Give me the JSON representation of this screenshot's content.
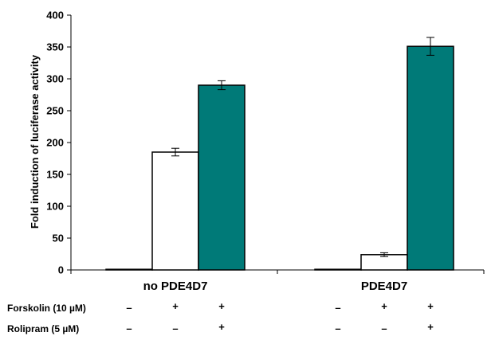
{
  "chart_data": {
    "type": "bar",
    "ylabel": "Fold induction of luciferase activity",
    "ylim": [
      0,
      400
    ],
    "yticks": [
      0,
      50,
      100,
      150,
      200,
      250,
      300,
      350,
      400
    ],
    "grid": false,
    "legend": "none",
    "groups": [
      "no PDE4D7",
      "PDE4D7"
    ],
    "bars": [
      {
        "group": "no PDE4D7",
        "value": 1,
        "error": 0,
        "color": "#ffffff"
      },
      {
        "group": "no PDE4D7",
        "value": 185,
        "error": 6,
        "color": "#ffffff"
      },
      {
        "group": "no PDE4D7",
        "value": 290,
        "error": 7,
        "color": "#007a78"
      },
      {
        "group": "PDE4D7",
        "value": 1,
        "error": 0,
        "color": "#ffffff"
      },
      {
        "group": "PDE4D7",
        "value": 24,
        "error": 3,
        "color": "#ffffff"
      },
      {
        "group": "PDE4D7",
        "value": 351,
        "error": 14,
        "color": "#007a78"
      }
    ],
    "conditions": [
      {
        "label": "Forskolin (10 µM)",
        "marks": [
          "–",
          "+",
          "+",
          "–",
          "+",
          "+"
        ]
      },
      {
        "label": "Rolipram (5 µM)",
        "marks": [
          "–",
          "–",
          "+",
          "–",
          "–",
          "+"
        ]
      }
    ],
    "colors": {
      "filled": "#007a78",
      "empty": "#ffffff"
    }
  }
}
